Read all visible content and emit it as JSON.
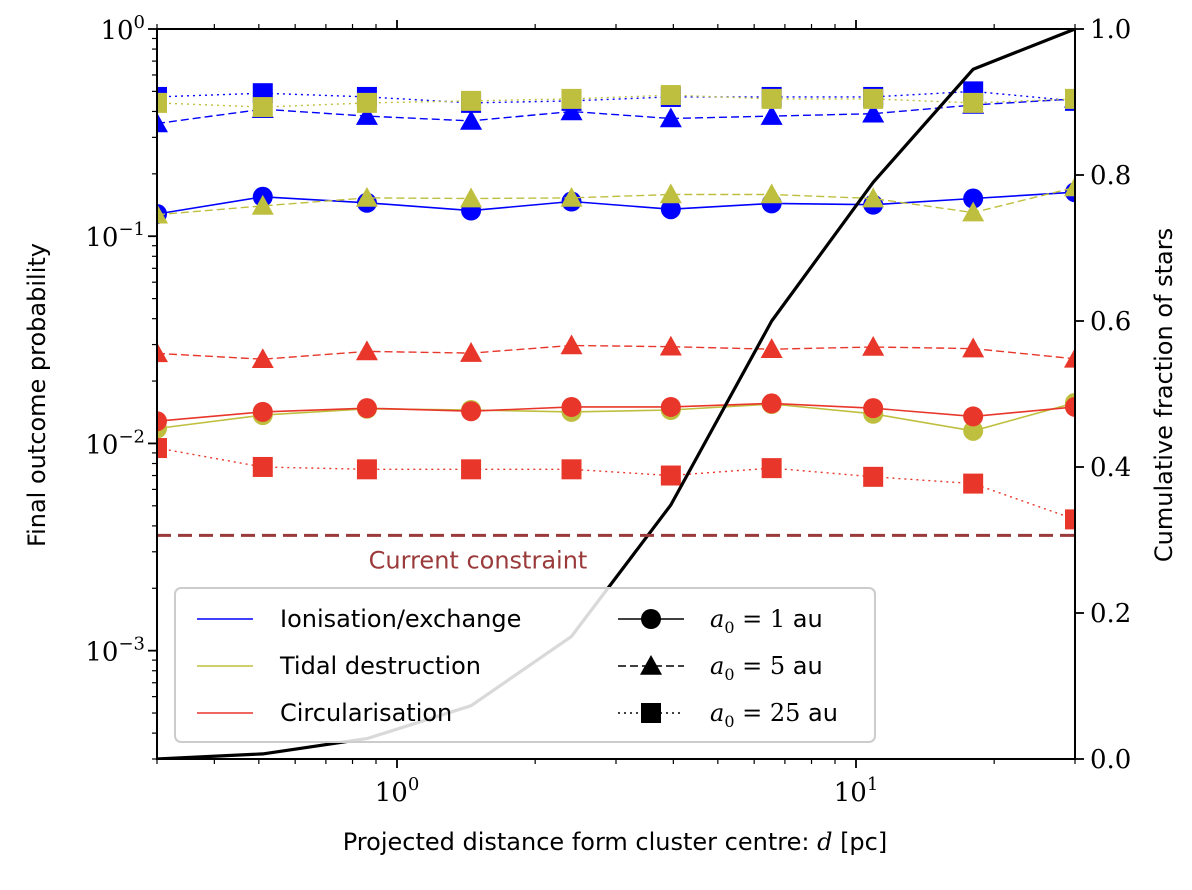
{
  "chart_data": {
    "type": "line",
    "x_scale": "log",
    "y_scale": "log",
    "xlim": [
      0.3,
      30
    ],
    "ylim": [
      0.0003,
      1
    ],
    "y2lim": [
      0,
      1
    ],
    "xlabel_text": "Projected distance form cluster centre: ",
    "xlabel_var": "d",
    "xlabel_unit": " [pc]",
    "ylabel": "Final outcome probability",
    "y2label": "Cumulative fraction of stars",
    "x_ticks": [
      {
        "base": "10",
        "exp": "0",
        "value": 1
      },
      {
        "base": "10",
        "exp": "1",
        "value": 10
      }
    ],
    "y_ticks": [
      {
        "base": "10",
        "exp": "−3",
        "value": 0.001
      },
      {
        "base": "10",
        "exp": "−2",
        "value": 0.01
      },
      {
        "base": "10",
        "exp": "−1",
        "value": 0.1
      },
      {
        "base": "10",
        "exp": "0",
        "value": 1
      }
    ],
    "y2_ticks": [
      "0.0",
      "0.2",
      "0.4",
      "0.6",
      "0.8",
      "1.0"
    ],
    "x": [
      0.3,
      0.51,
      0.86,
      1.45,
      2.4,
      3.95,
      6.55,
      10.9,
      18.0,
      30.0
    ],
    "series": [
      {
        "process": "ionisation",
        "a0": "1",
        "values": [
          0.128,
          0.155,
          0.145,
          0.133,
          0.147,
          0.135,
          0.144,
          0.142,
          0.152,
          0.163
        ]
      },
      {
        "process": "ionisation",
        "a0": "5",
        "values": [
          0.35,
          0.41,
          0.38,
          0.36,
          0.4,
          0.37,
          0.38,
          0.39,
          0.43,
          0.46
        ]
      },
      {
        "process": "ionisation",
        "a0": "25",
        "values": [
          0.47,
          0.49,
          0.47,
          0.44,
          0.45,
          0.47,
          0.47,
          0.47,
          0.5,
          0.45
        ]
      },
      {
        "process": "tidal",
        "a0": "1",
        "values": [
          0.0118,
          0.0137,
          0.0147,
          0.0145,
          0.0142,
          0.0145,
          0.0155,
          0.0139,
          0.0115,
          0.0157
        ]
      },
      {
        "process": "tidal",
        "a0": "5",
        "values": [
          0.127,
          0.14,
          0.153,
          0.152,
          0.153,
          0.159,
          0.159,
          0.152,
          0.13,
          0.172
        ]
      },
      {
        "process": "tidal",
        "a0": "25",
        "values": [
          0.44,
          0.42,
          0.44,
          0.45,
          0.46,
          0.48,
          0.46,
          0.46,
          0.44,
          0.46
        ]
      },
      {
        "process": "circularisation",
        "a0": "1",
        "values": [
          0.0128,
          0.0142,
          0.0148,
          0.0143,
          0.015,
          0.015,
          0.0156,
          0.0148,
          0.0135,
          0.015
        ]
      },
      {
        "process": "circularisation",
        "a0": "5",
        "values": [
          0.0272,
          0.0255,
          0.0278,
          0.0273,
          0.0297,
          0.0293,
          0.0285,
          0.0292,
          0.0287,
          0.0256
        ]
      },
      {
        "process": "circularisation",
        "a0": "25",
        "values": [
          0.0095,
          0.0077,
          0.0075,
          0.0075,
          0.0075,
          0.007,
          0.0076,
          0.0069,
          0.0064,
          0.0043
        ]
      }
    ],
    "cumulative": {
      "x": [
        0.3,
        0.51,
        0.86,
        1.45,
        2.4,
        3.95,
        6.55,
        10.9,
        18.0,
        30.0
      ],
      "values": [
        0.0,
        0.007,
        0.028,
        0.073,
        0.168,
        0.348,
        0.6,
        0.79,
        0.945,
        1.0
      ]
    },
    "constraint": {
      "value": 0.0036,
      "label": "Current constraint",
      "color": "#9b3a3a"
    },
    "legend": {
      "position": "lower-left",
      "process_entries": [
        {
          "label": "Ionisation/exchange",
          "color": "#0000ff"
        },
        {
          "label": "Tidal destruction",
          "color": "#bfbf3f"
        },
        {
          "label": "Circularisation",
          "color": "#e8372a"
        }
      ],
      "a0_entries": [
        {
          "var": "a",
          "sub": "0",
          "eq": " = 1",
          "unit": "au",
          "style": "solid",
          "marker": "circle"
        },
        {
          "var": "a",
          "sub": "0",
          "eq": " = 5",
          "unit": "au",
          "style": "dashed",
          "marker": "triangle"
        },
        {
          "var": "a",
          "sub": "0",
          "eq": " = 25",
          "unit": "au",
          "style": "dotted",
          "marker": "square"
        }
      ]
    },
    "colors": {
      "ionisation": "#0000ff",
      "tidal": "#bfbf3f",
      "circularisation": "#e8372a",
      "cumulative": "#000000"
    }
  }
}
